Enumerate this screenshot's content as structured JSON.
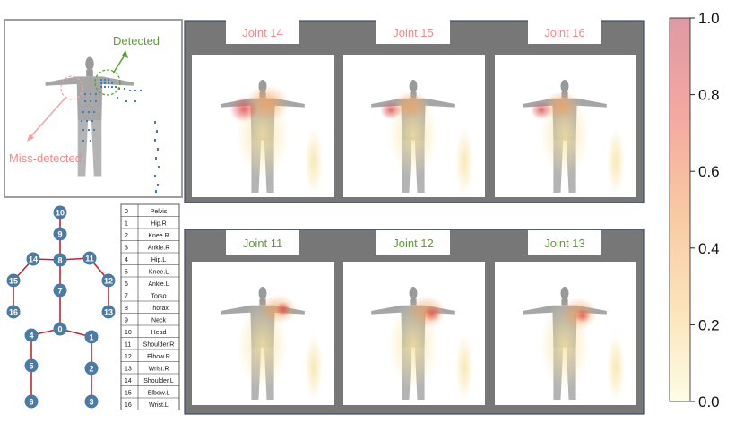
{
  "top_left_panel": {
    "detected_label": "Detected",
    "miss_detected_label": "Miss-detected",
    "detected_color": "#5aa02c",
    "miss_color": "#f4a3a3"
  },
  "heatmap_rows": [
    {
      "label_color": "#f4a3a3",
      "panels": [
        {
          "title": "Joint 14"
        },
        {
          "title": "Joint 15"
        },
        {
          "title": "Joint 16"
        }
      ]
    },
    {
      "label_color": "#5aa02c",
      "panels": [
        {
          "title": "Joint 11"
        },
        {
          "title": "Joint 12"
        },
        {
          "title": "Joint 13"
        }
      ]
    }
  ],
  "colorbar": {
    "ticks": [
      "1.0",
      "0.8",
      "0.6",
      "0.4",
      "0.2",
      "0.0"
    ],
    "min": 0.0,
    "max": 1.0,
    "colors": [
      "#fdfde6",
      "#fbe3b8",
      "#f8c8a2",
      "#f4a8a0",
      "#de9aa4"
    ]
  },
  "skeleton": {
    "nodes": [
      "0",
      "1",
      "2",
      "3",
      "4",
      "5",
      "6",
      "7",
      "8",
      "9",
      "10",
      "11",
      "12",
      "13",
      "14",
      "15",
      "16"
    ],
    "node_color": "#4a7aa6",
    "edge_color": "#c0272d"
  },
  "joint_table": {
    "rows": [
      [
        "0",
        "Pelvis"
      ],
      [
        "1",
        "Hip.R"
      ],
      [
        "2",
        "Knee.R"
      ],
      [
        "3",
        "Ankle.R"
      ],
      [
        "4",
        "Hip.L"
      ],
      [
        "5",
        "Knee.L"
      ],
      [
        "6",
        "Ankle.L"
      ],
      [
        "7",
        "Torso"
      ],
      [
        "8",
        "Thorax"
      ],
      [
        "9",
        "Neck"
      ],
      [
        "10",
        "Head"
      ],
      [
        "11",
        "Shoulder.R"
      ],
      [
        "12",
        "Elbow.R"
      ],
      [
        "13",
        "Wrist.R"
      ],
      [
        "14",
        "Shoulder.L"
      ],
      [
        "15",
        "Elbow.L"
      ],
      [
        "16",
        "Wrist.L"
      ]
    ]
  }
}
